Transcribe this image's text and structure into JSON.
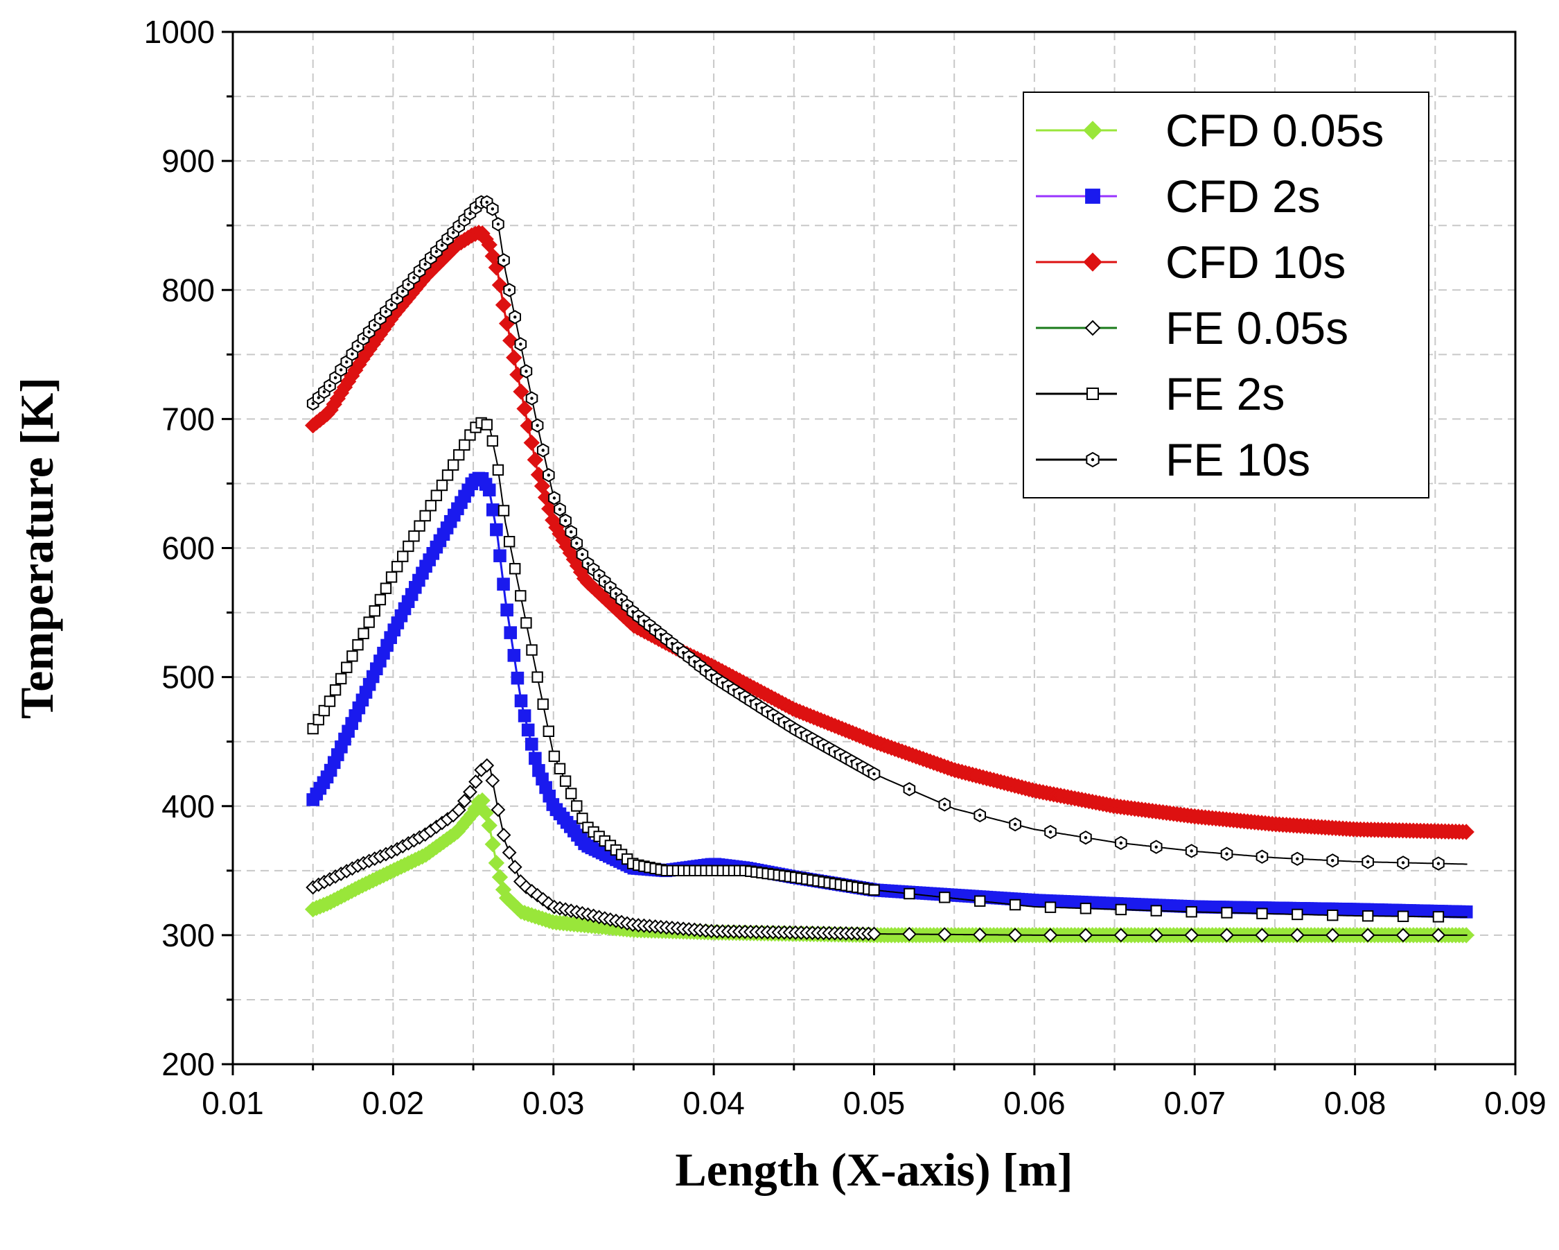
{
  "chart_data": {
    "type": "line",
    "title": "",
    "xlabel": "Length (X-axis) [m]",
    "ylabel": "Temperature [K]",
    "xlim": [
      0.01,
      0.09
    ],
    "ylim": [
      200,
      1000
    ],
    "xticks": [
      "0.01",
      "0.02",
      "0.03",
      "0.04",
      "0.05",
      "0.06",
      "0.07",
      "0.08",
      "0.09"
    ],
    "yticks": [
      "200",
      "300",
      "400",
      "500",
      "600",
      "700",
      "800",
      "900",
      "1000"
    ],
    "grid": true,
    "legend_position": "top-right",
    "series": [
      {
        "name": "CFD 0.05s",
        "color": "#99e63a",
        "marker": "filled-diamond",
        "x": [
          0.015,
          0.016,
          0.018,
          0.02,
          0.022,
          0.024,
          0.025,
          0.0255,
          0.026,
          0.0265,
          0.027,
          0.028,
          0.03,
          0.035,
          0.04,
          0.05,
          0.06,
          0.07,
          0.08,
          0.087
        ],
        "y": [
          320,
          325,
          338,
          350,
          362,
          380,
          395,
          407,
          385,
          352,
          330,
          318,
          310,
          304,
          302,
          300,
          300,
          300,
          300,
          300
        ]
      },
      {
        "name": "CFD 2s",
        "color": "#1a1aee",
        "marker": "filled-square",
        "x": [
          0.015,
          0.016,
          0.018,
          0.02,
          0.022,
          0.024,
          0.025,
          0.0255,
          0.026,
          0.0265,
          0.027,
          0.028,
          0.029,
          0.03,
          0.032,
          0.035,
          0.037,
          0.04,
          0.042,
          0.045,
          0.05,
          0.06,
          0.07,
          0.08,
          0.087
        ],
        "y": [
          405,
          425,
          480,
          535,
          585,
          630,
          652,
          655,
          645,
          610,
          560,
          480,
          430,
          400,
          370,
          352,
          350,
          355,
          352,
          345,
          335,
          327,
          322,
          320,
          318
        ]
      },
      {
        "name": "CFD 10s",
        "color": "#dd1111",
        "marker": "filled-diamond",
        "x": [
          0.015,
          0.016,
          0.018,
          0.02,
          0.022,
          0.024,
          0.025,
          0.0255,
          0.026,
          0.0265,
          0.027,
          0.028,
          0.029,
          0.03,
          0.032,
          0.035,
          0.038,
          0.04,
          0.045,
          0.05,
          0.055,
          0.06,
          0.065,
          0.07,
          0.075,
          0.08,
          0.087
        ],
        "y": [
          695,
          705,
          745,
          780,
          810,
          835,
          843,
          845,
          835,
          815,
          780,
          720,
          660,
          620,
          575,
          540,
          520,
          508,
          475,
          450,
          428,
          412,
          400,
          392,
          386,
          382,
          380
        ]
      },
      {
        "name": "FE 0.05s",
        "color": "#1a7a1a",
        "marker": "open-diamond",
        "x": [
          0.015,
          0.016,
          0.018,
          0.02,
          0.022,
          0.024,
          0.025,
          0.0255,
          0.026,
          0.0265,
          0.027,
          0.028,
          0.03,
          0.035,
          0.04,
          0.05,
          0.06,
          0.07,
          0.08,
          0.087
        ],
        "y": [
          337,
          343,
          355,
          365,
          378,
          395,
          415,
          428,
          433,
          400,
          372,
          340,
          322,
          308,
          303,
          301,
          300,
          300,
          300,
          300
        ]
      },
      {
        "name": "FE 2s",
        "color": "#000000",
        "marker": "open-square",
        "x": [
          0.015,
          0.016,
          0.018,
          0.02,
          0.022,
          0.024,
          0.025,
          0.0255,
          0.026,
          0.0265,
          0.027,
          0.028,
          0.029,
          0.03,
          0.032,
          0.035,
          0.037,
          0.04,
          0.042,
          0.045,
          0.05,
          0.06,
          0.07,
          0.08,
          0.087
        ],
        "y": [
          460,
          480,
          530,
          580,
          625,
          670,
          692,
          697,
          695,
          665,
          620,
          560,
          500,
          440,
          385,
          355,
          350,
          350,
          350,
          345,
          335,
          322,
          318,
          315,
          314
        ]
      },
      {
        "name": "FE 10s",
        "color": "#000000",
        "marker": "open-hexagon",
        "x": [
          0.015,
          0.016,
          0.018,
          0.02,
          0.022,
          0.024,
          0.025,
          0.0255,
          0.026,
          0.0265,
          0.027,
          0.028,
          0.029,
          0.03,
          0.032,
          0.035,
          0.038,
          0.04,
          0.045,
          0.05,
          0.055,
          0.06,
          0.065,
          0.07,
          0.075,
          0.08,
          0.087
        ],
        "y": [
          712,
          725,
          760,
          790,
          820,
          848,
          862,
          868,
          868,
          855,
          815,
          755,
          695,
          640,
          590,
          550,
          520,
          500,
          460,
          425,
          398,
          382,
          372,
          365,
          360,
          357,
          355
        ]
      }
    ]
  }
}
